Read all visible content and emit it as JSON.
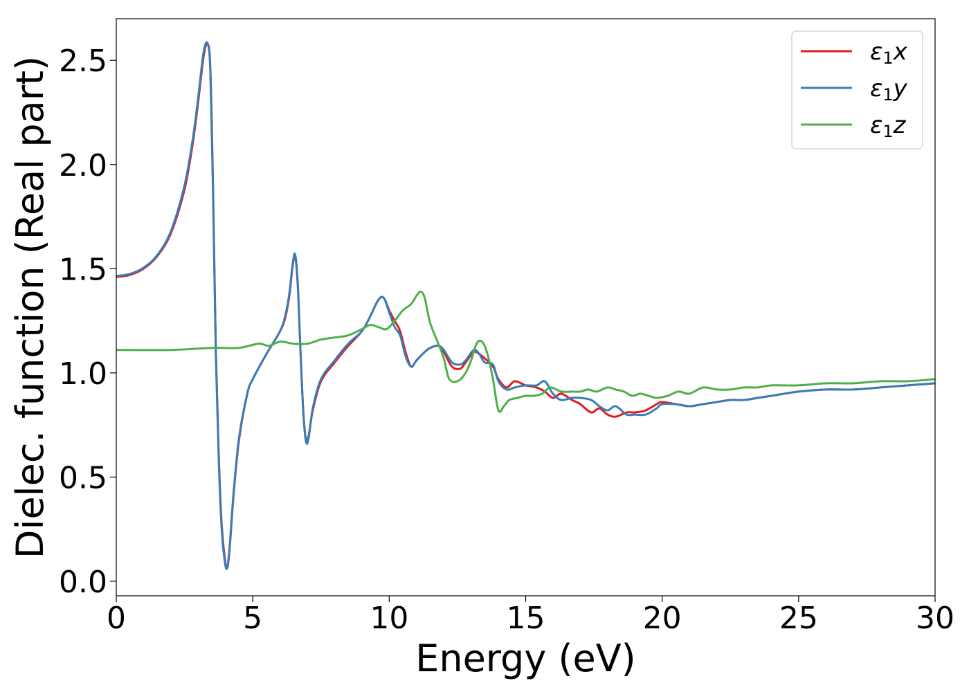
{
  "chart_data": {
    "type": "line",
    "xlabel": "Energy (eV)",
    "ylabel": "Dielec. function (Real part)",
    "xlim": [
      0,
      30
    ],
    "ylim": [
      -0.07,
      2.7
    ],
    "xticks": [
      0,
      5,
      10,
      15,
      20,
      25,
      30
    ],
    "xtick_labels": [
      "0",
      "5",
      "10",
      "15",
      "20",
      "25",
      "30"
    ],
    "yticks": [
      0.0,
      0.5,
      1.0,
      1.5,
      2.0,
      2.5
    ],
    "ytick_labels": [
      "0.0",
      "0.5",
      "1.0",
      "1.5",
      "2.0",
      "2.5"
    ],
    "grid": false,
    "legend_position": "top-right",
    "series": [
      {
        "name": "ε1x",
        "legend": {
          "symbol": "ε",
          "sub": "1",
          "comp": "x"
        },
        "color": "#e41a1c",
        "x": [
          0,
          0.5,
          1,
          1.5,
          2,
          2.5,
          2.8,
          3.0,
          3.2,
          3.35,
          3.45,
          3.55,
          3.65,
          3.75,
          3.85,
          3.95,
          4.05,
          4.15,
          4.3,
          4.5,
          4.8,
          5.0,
          5.5,
          6.0,
          6.2,
          6.35,
          6.45,
          6.55,
          6.65,
          6.75,
          6.85,
          6.95,
          7.05,
          7.2,
          7.5,
          8.0,
          8.5,
          9.0,
          9.3,
          9.6,
          9.8,
          10.0,
          10.2,
          10.4,
          10.6,
          10.8,
          11.0,
          11.3,
          11.5,
          11.8,
          12.0,
          12.3,
          12.6,
          12.8,
          13.1,
          13.3,
          13.5,
          13.8,
          14.0,
          14.3,
          14.6,
          15.0,
          15.4,
          15.7,
          16.0,
          16.3,
          16.7,
          17.0,
          17.4,
          17.7,
          18.0,
          18.3,
          18.7,
          19.0,
          19.4,
          19.8,
          20.0,
          20.5,
          21.0,
          21.5,
          22.0,
          22.5,
          23.0,
          23.5,
          24.0,
          25.0,
          26.0,
          27.0,
          28.0,
          29.0,
          30.0
        ],
        "values": [
          1.46,
          1.47,
          1.5,
          1.56,
          1.67,
          1.88,
          2.1,
          2.3,
          2.52,
          2.58,
          2.45,
          1.85,
          1.1,
          0.62,
          0.3,
          0.14,
          0.06,
          0.15,
          0.42,
          0.68,
          0.9,
          0.97,
          1.09,
          1.2,
          1.27,
          1.38,
          1.5,
          1.56,
          1.42,
          1.1,
          0.82,
          0.68,
          0.7,
          0.82,
          0.96,
          1.05,
          1.13,
          1.2,
          1.27,
          1.35,
          1.36,
          1.3,
          1.25,
          1.2,
          1.1,
          1.03,
          1.06,
          1.1,
          1.12,
          1.13,
          1.1,
          1.03,
          1.02,
          1.05,
          1.1,
          1.09,
          1.07,
          1.03,
          0.97,
          0.93,
          0.96,
          0.94,
          0.93,
          0.91,
          0.88,
          0.9,
          0.87,
          0.85,
          0.81,
          0.83,
          0.8,
          0.79,
          0.81,
          0.81,
          0.82,
          0.85,
          0.86,
          0.85,
          0.84,
          0.85,
          0.86,
          0.87,
          0.87,
          0.88,
          0.89,
          0.91,
          0.92,
          0.92,
          0.93,
          0.94,
          0.95
        ]
      },
      {
        "name": "ε1y",
        "legend": {
          "symbol": "ε",
          "sub": "1",
          "comp": "y"
        },
        "color": "#377eb8",
        "x": [
          0,
          0.5,
          1,
          1.5,
          2,
          2.5,
          2.8,
          3.0,
          3.2,
          3.35,
          3.45,
          3.55,
          3.65,
          3.75,
          3.85,
          3.95,
          4.05,
          4.15,
          4.3,
          4.5,
          4.8,
          5.0,
          5.5,
          6.0,
          6.2,
          6.35,
          6.45,
          6.55,
          6.65,
          6.75,
          6.85,
          6.95,
          7.05,
          7.2,
          7.5,
          8.0,
          8.5,
          9.0,
          9.3,
          9.6,
          9.8,
          10.0,
          10.2,
          10.4,
          10.6,
          10.8,
          11.0,
          11.3,
          11.5,
          11.8,
          12.0,
          12.3,
          12.6,
          12.8,
          13.1,
          13.3,
          13.5,
          13.8,
          14.0,
          14.3,
          14.6,
          15.0,
          15.4,
          15.7,
          16.0,
          16.3,
          16.7,
          17.0,
          17.4,
          17.7,
          18.0,
          18.3,
          18.7,
          19.0,
          19.4,
          19.8,
          20.0,
          20.5,
          21.0,
          21.5,
          22.0,
          22.5,
          23.0,
          23.5,
          24.0,
          25.0,
          26.0,
          27.0,
          28.0,
          29.0,
          30.0
        ],
        "values": [
          1.465,
          1.475,
          1.505,
          1.565,
          1.68,
          1.9,
          2.12,
          2.32,
          2.54,
          2.58,
          2.44,
          1.82,
          1.08,
          0.6,
          0.28,
          0.12,
          0.06,
          0.16,
          0.43,
          0.69,
          0.9,
          0.97,
          1.09,
          1.2,
          1.28,
          1.39,
          1.51,
          1.57,
          1.43,
          1.1,
          0.82,
          0.67,
          0.69,
          0.83,
          0.97,
          1.06,
          1.14,
          1.2,
          1.27,
          1.35,
          1.36,
          1.29,
          1.22,
          1.18,
          1.08,
          1.03,
          1.06,
          1.1,
          1.12,
          1.13,
          1.11,
          1.05,
          1.04,
          1.06,
          1.11,
          1.09,
          1.05,
          1.04,
          0.96,
          0.92,
          0.93,
          0.94,
          0.94,
          0.96,
          0.9,
          0.87,
          0.88,
          0.88,
          0.87,
          0.84,
          0.82,
          0.84,
          0.8,
          0.8,
          0.8,
          0.83,
          0.85,
          0.85,
          0.84,
          0.85,
          0.86,
          0.87,
          0.87,
          0.88,
          0.89,
          0.91,
          0.92,
          0.92,
          0.93,
          0.94,
          0.95
        ]
      },
      {
        "name": "ε1z",
        "legend": {
          "symbol": "ε",
          "sub": "1",
          "comp": "z"
        },
        "color": "#4daf4a",
        "x": [
          0,
          2,
          3.5,
          4.5,
          5.2,
          5.6,
          6.0,
          6.5,
          7.0,
          7.5,
          8.0,
          8.5,
          9.0,
          9.3,
          9.6,
          9.9,
          10.2,
          10.5,
          10.8,
          11.0,
          11.15,
          11.3,
          11.5,
          11.8,
          12.0,
          12.2,
          12.5,
          12.8,
          13.0,
          13.2,
          13.4,
          13.6,
          13.8,
          14.0,
          14.2,
          14.4,
          14.7,
          15.0,
          15.3,
          15.6,
          15.9,
          16.3,
          16.7,
          17.0,
          17.3,
          17.6,
          18.0,
          18.3,
          18.6,
          18.9,
          19.2,
          19.5,
          19.8,
          20.2,
          20.6,
          21.0,
          21.5,
          22.0,
          22.5,
          23.0,
          23.5,
          24.0,
          25.0,
          26.0,
          27.0,
          28.0,
          29.0,
          30.0
        ],
        "values": [
          1.11,
          1.11,
          1.12,
          1.12,
          1.14,
          1.13,
          1.15,
          1.14,
          1.14,
          1.16,
          1.17,
          1.18,
          1.21,
          1.23,
          1.22,
          1.21,
          1.25,
          1.3,
          1.33,
          1.37,
          1.39,
          1.36,
          1.24,
          1.14,
          1.07,
          0.97,
          0.96,
          1.0,
          1.06,
          1.14,
          1.15,
          1.09,
          0.97,
          0.82,
          0.84,
          0.87,
          0.88,
          0.89,
          0.89,
          0.9,
          0.93,
          0.91,
          0.91,
          0.91,
          0.92,
          0.91,
          0.93,
          0.92,
          0.91,
          0.89,
          0.9,
          0.89,
          0.88,
          0.89,
          0.91,
          0.9,
          0.93,
          0.92,
          0.92,
          0.93,
          0.93,
          0.94,
          0.94,
          0.95,
          0.95,
          0.96,
          0.96,
          0.97
        ]
      }
    ]
  }
}
